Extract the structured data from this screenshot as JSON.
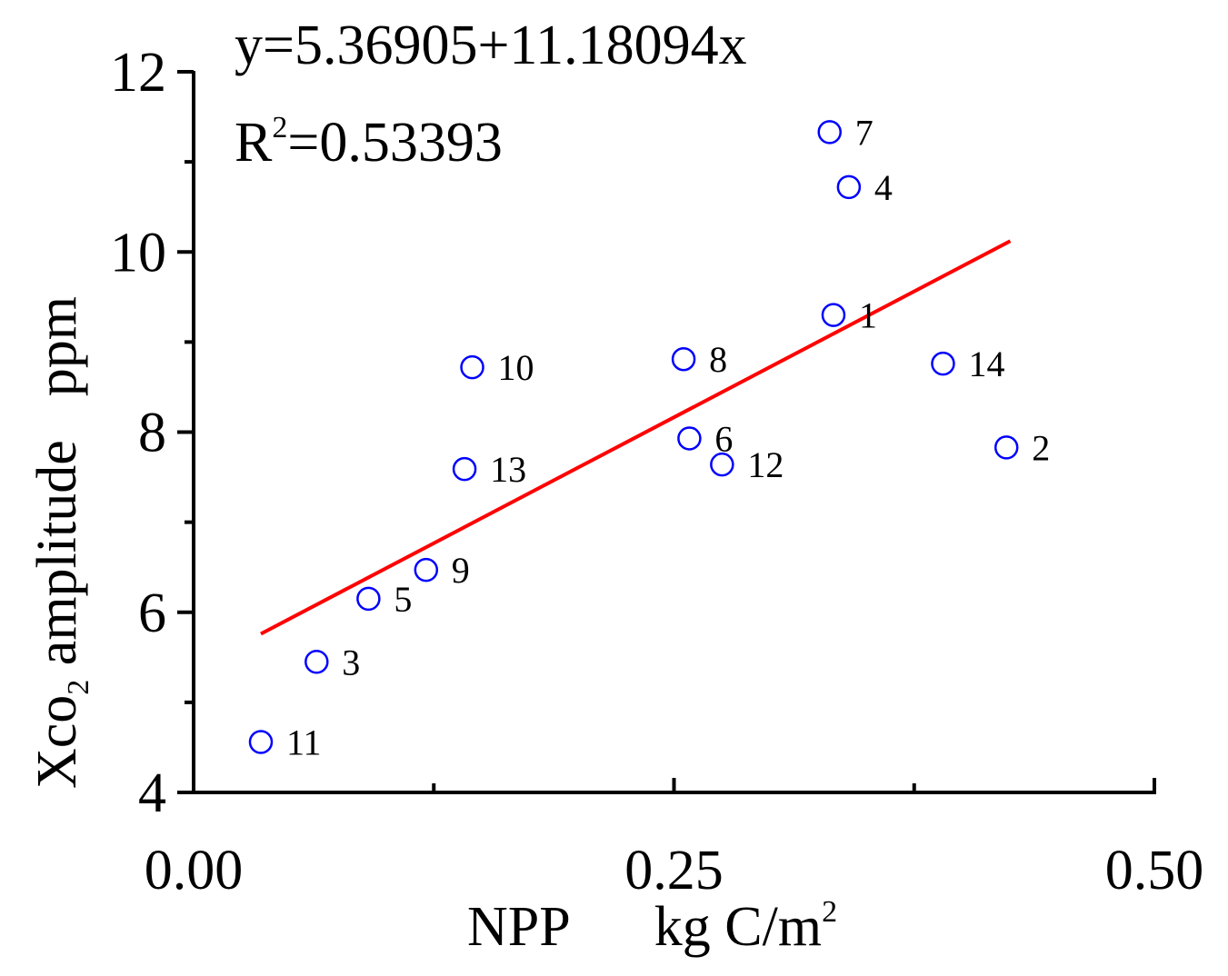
{
  "chart_data": {
    "type": "scatter",
    "title": "",
    "xlabel": {
      "main": "NPP",
      "unit_base": "kg C/m",
      "unit_sup": "2"
    },
    "ylabel": {
      "prefix": "Xco",
      "sub": "2",
      "middle": " amplitude",
      "unit": "ppm"
    },
    "xlim": [
      0.0,
      0.5
    ],
    "ylim": [
      4,
      12
    ],
    "x_ticks": [
      0.0,
      0.25,
      0.5
    ],
    "x_tick_labels": [
      "0.00",
      "0.25",
      "0.50"
    ],
    "x_minor_ticks": [
      0.125,
      0.375
    ],
    "y_ticks": [
      4,
      6,
      8,
      10,
      12
    ],
    "y_tick_labels": [
      "4",
      "6",
      "8",
      "10",
      "12"
    ],
    "y_minor_ticks": [
      5,
      7,
      9,
      11
    ],
    "grid": false,
    "marker_color": "#0000ff",
    "line_color": "#ff0000",
    "annotation": {
      "equation": "y=5.36905+11.18094x",
      "r2_prefix": "R",
      "r2_sup": "2",
      "r2_value": "=0.53393"
    },
    "fit_line": {
      "intercept": 5.36905,
      "slope": 11.18094,
      "x_range": [
        0.035,
        0.425
      ]
    },
    "points": [
      {
        "label": "1",
        "x": 0.333,
        "y": 9.3
      },
      {
        "label": "2",
        "x": 0.423,
        "y": 7.83
      },
      {
        "label": "3",
        "x": 0.064,
        "y": 5.45
      },
      {
        "label": "4",
        "x": 0.341,
        "y": 10.72
      },
      {
        "label": "5",
        "x": 0.091,
        "y": 6.15
      },
      {
        "label": "6",
        "x": 0.258,
        "y": 7.93
      },
      {
        "label": "7",
        "x": 0.331,
        "y": 11.33
      },
      {
        "label": "8",
        "x": 0.255,
        "y": 8.81
      },
      {
        "label": "9",
        "x": 0.121,
        "y": 6.47
      },
      {
        "label": "10",
        "x": 0.145,
        "y": 8.72
      },
      {
        "label": "11",
        "x": 0.035,
        "y": 4.56
      },
      {
        "label": "12",
        "x": 0.275,
        "y": 7.64
      },
      {
        "label": "13",
        "x": 0.141,
        "y": 7.59
      },
      {
        "label": "14",
        "x": 0.39,
        "y": 8.76
      }
    ]
  }
}
